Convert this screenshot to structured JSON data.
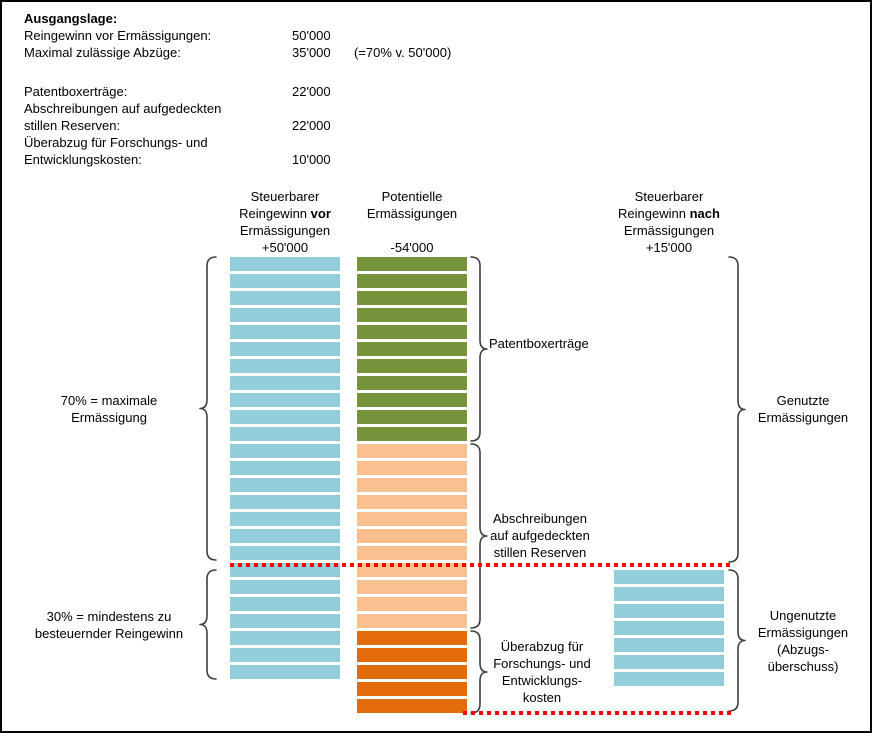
{
  "intro": {
    "title": "Ausgangslage:",
    "rows": [
      {
        "label": "Reingewinn vor Ermässigungen:",
        "value": "50'000",
        "note": ""
      },
      {
        "label": "Maximal zulässige Abzüge:",
        "value": "35'000",
        "note": "(=70% v. 50'000)"
      },
      {
        "label": "",
        "value": "",
        "note": ""
      },
      {
        "label": "Patentboxerträge:",
        "value": "22'000",
        "note": ""
      },
      {
        "label": "Abschreibungen auf aufgedeckten",
        "value": "",
        "note": ""
      },
      {
        "label": "stillen Reserven:",
        "value": "22'000",
        "note": ""
      },
      {
        "label": "Überabzug für Forschungs- und",
        "value": "",
        "note": ""
      },
      {
        "label": "Entwicklungskosten:",
        "value": "10'000",
        "note": ""
      }
    ]
  },
  "colors": {
    "blue": "#92CDDC",
    "green": "#77933C",
    "light_orange": "#FAC090",
    "dark_orange": "#E36C0A",
    "dotted_line": "#FF0000"
  },
  "columns": {
    "before": {
      "header": {
        "line1": "Steuerbarer",
        "line2_regular": "Reingewinn ",
        "line2_bold": "vor",
        "line3": "Ermässigungen",
        "amount": "+50'000"
      },
      "segments": [
        {
          "name": "reingewinn-vor",
          "color_key": "blue",
          "count": 25
        }
      ]
    },
    "potential": {
      "header": {
        "line1": "Potentielle",
        "line2": "Ermässigungen",
        "amount": "-54'000"
      },
      "segments": [
        {
          "name": "patentboxertraege",
          "color_key": "green",
          "count": 11
        },
        {
          "name": "abschreibungen-stille-reserven",
          "color_key": "light_orange",
          "count": 11
        },
        {
          "name": "ueberabzug-forschung-entwicklung",
          "color_key": "dark_orange",
          "count": 5
        }
      ]
    },
    "after": {
      "header": {
        "line1": "Steuerbarer",
        "line2_regular": "Reingewinn ",
        "line2_bold": "nach",
        "line3": "Ermässigungen",
        "amount": "+15'000"
      },
      "segments": [
        {
          "name": "reingewinn-nach",
          "color_key": "blue",
          "count": 7
        }
      ]
    }
  },
  "annotations": {
    "left_top": {
      "lines": [
        "70% = maximale",
        "Ermässigung"
      ]
    },
    "left_bottom": {
      "lines": [
        "30% = mindestens zu",
        "besteuernder Reingewinn"
      ]
    },
    "mid_patentbox": {
      "lines": [
        "Patentboxerträge"
      ]
    },
    "mid_abschreibungen": {
      "lines": [
        "Abschreibungen",
        "auf aufgedeckten",
        "stillen Reserven"
      ]
    },
    "mid_ueberabzug": {
      "lines": [
        "Überabzug für",
        "Forschungs- und",
        "Entwicklungs-",
        "kosten"
      ]
    },
    "right_genutzt": {
      "lines": [
        "Genutzte",
        "Ermässigungen"
      ]
    },
    "right_ungenutzt": {
      "lines": [
        "Ungenutzte",
        "Ermässigungen",
        "(Abzugs-",
        "überschuss)"
      ]
    }
  },
  "chart_data": {
    "type": "bar",
    "categories": [
      "Steuerbarer Reingewinn vor Ermässigungen",
      "Potentielle Ermässigungen",
      "Steuerbarer Reingewinn nach Ermässigungen"
    ],
    "series": [
      {
        "name": "Reingewinn",
        "values": [
          50000,
          0,
          15000
        ]
      },
      {
        "name": "Patentboxerträge",
        "values": [
          0,
          22000,
          0
        ]
      },
      {
        "name": "Abschreibungen auf aufgedeckten stillen Reserven",
        "values": [
          0,
          22000,
          0
        ]
      },
      {
        "name": "Überabzug für Forschungs- und Entwicklungskosten",
        "values": [
          0,
          10000,
          0
        ]
      }
    ],
    "totals": {
      "before": "+50'000",
      "potential": "-54'000",
      "after": "+15'000"
    },
    "annotations": [
      "70% = maximale Ermässigung",
      "30% = mindestens zu besteuernder Reingewinn",
      "Genutzte Ermässigungen",
      "Ungenutzte Ermässigungen (Abzugsüberschuss)"
    ]
  }
}
